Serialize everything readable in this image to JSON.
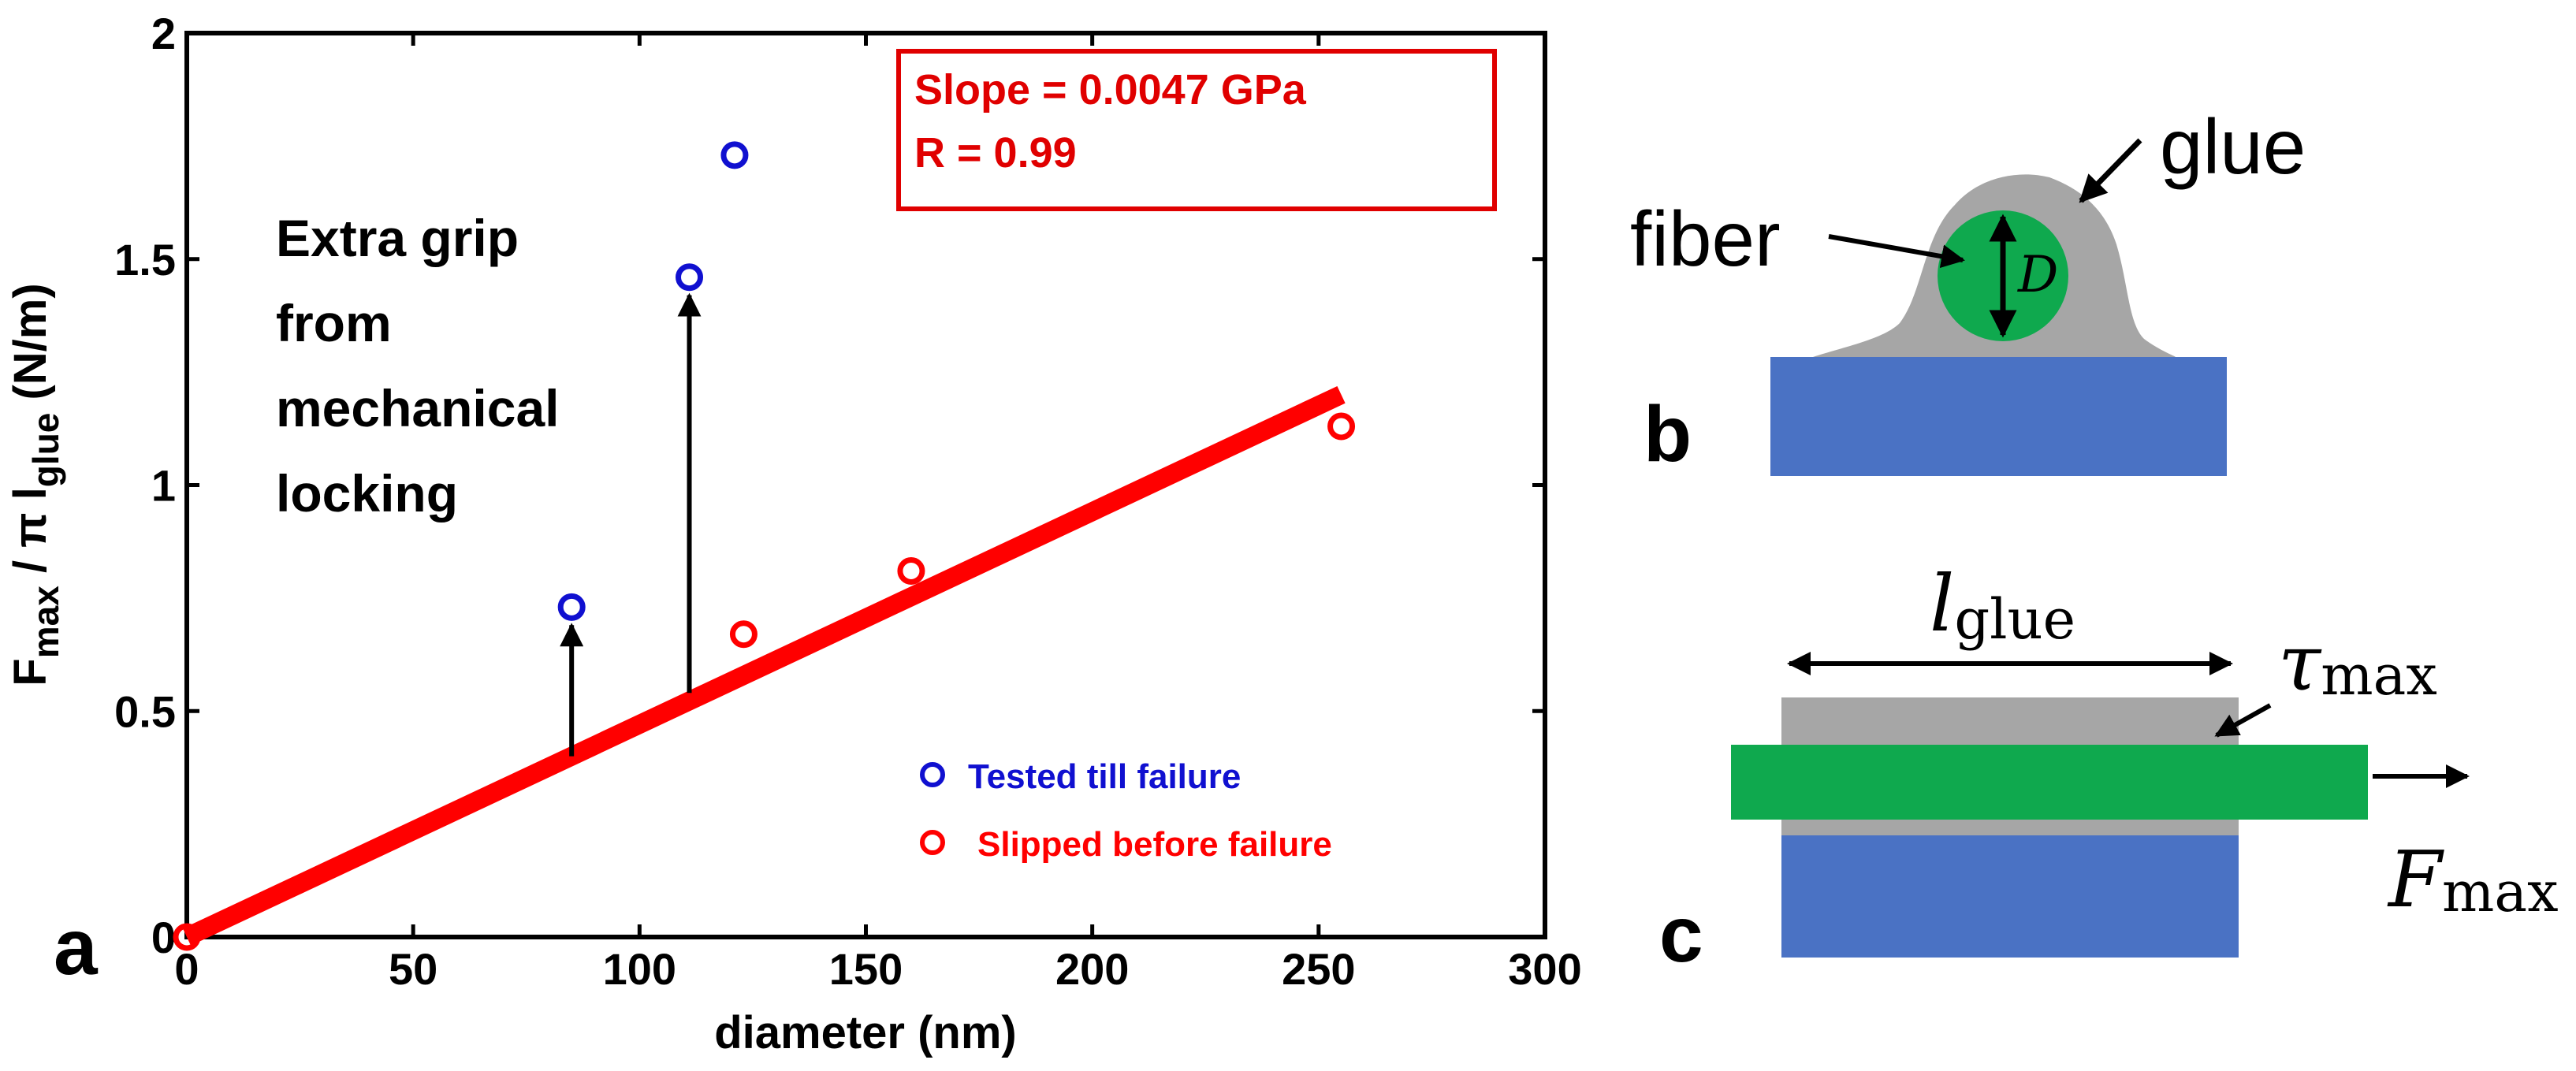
{
  "chart_data": {
    "type": "scatter",
    "title": "",
    "xlabel": "diameter (nm)",
    "ylabel": {
      "F": "F",
      "max": "max",
      "mid": " / π l",
      "glue": "glue",
      "unit": " (N/m)"
    },
    "xlim": [
      0,
      300
    ],
    "ylim": [
      0,
      2
    ],
    "xticks": [
      "0",
      "50",
      "100",
      "150",
      "200",
      "250",
      "300"
    ],
    "yticks": [
      "0",
      "0.5",
      "1",
      "1.5",
      "2"
    ],
    "series": [
      {
        "name": "Tested till failure",
        "color": "#1010d0",
        "points": [
          [
            85,
            0.73
          ],
          [
            111,
            1.46
          ],
          [
            121,
            1.73
          ]
        ]
      },
      {
        "name": "Slipped before failure",
        "color": "#ff0000",
        "points": [
          [
            0,
            0.0
          ],
          [
            123,
            0.67
          ],
          [
            160,
            0.81
          ],
          [
            255,
            1.13
          ]
        ]
      }
    ],
    "fit_line": {
      "x": [
        0,
        255
      ],
      "y": [
        0,
        1.2
      ],
      "color": "#ff0000"
    },
    "arrows": [
      {
        "x": 85,
        "from": 0.4,
        "to": 0.69
      },
      {
        "x": 111,
        "from": 0.54,
        "to": 1.42
      }
    ],
    "annotation_box": {
      "line1": "Slope = 0.0047 GPa",
      "line2": "R = 0.99",
      "color": "#e00000"
    },
    "annotation_text": [
      "Extra grip",
      "from",
      "mechanical",
      "locking"
    ],
    "legend": {
      "position": "bottom-right",
      "items": [
        {
          "label": "Tested till failure",
          "color": "#1010d0"
        },
        {
          "label": "Slipped before failure",
          "color": "#ff0000"
        }
      ]
    }
  },
  "panels": {
    "a": "a",
    "b": "b",
    "c": "c"
  },
  "diagram_b": {
    "glue_label": "glue",
    "fiber_label": "fiber",
    "diameter_label": "D",
    "colors": {
      "glue": "#a6a6a6",
      "fiber": "#0fa94e",
      "substrate": "#4a72c4"
    }
  },
  "diagram_c": {
    "length_label": {
      "base": "l",
      "sub": "glue"
    },
    "shear_label": {
      "base": "τ",
      "sub": "max"
    },
    "force_label": {
      "base": "F",
      "sub": "max"
    },
    "colors": {
      "glue": "#a6a6a6",
      "fiber": "#0fa94e",
      "substrate": "#4a72c4"
    }
  }
}
